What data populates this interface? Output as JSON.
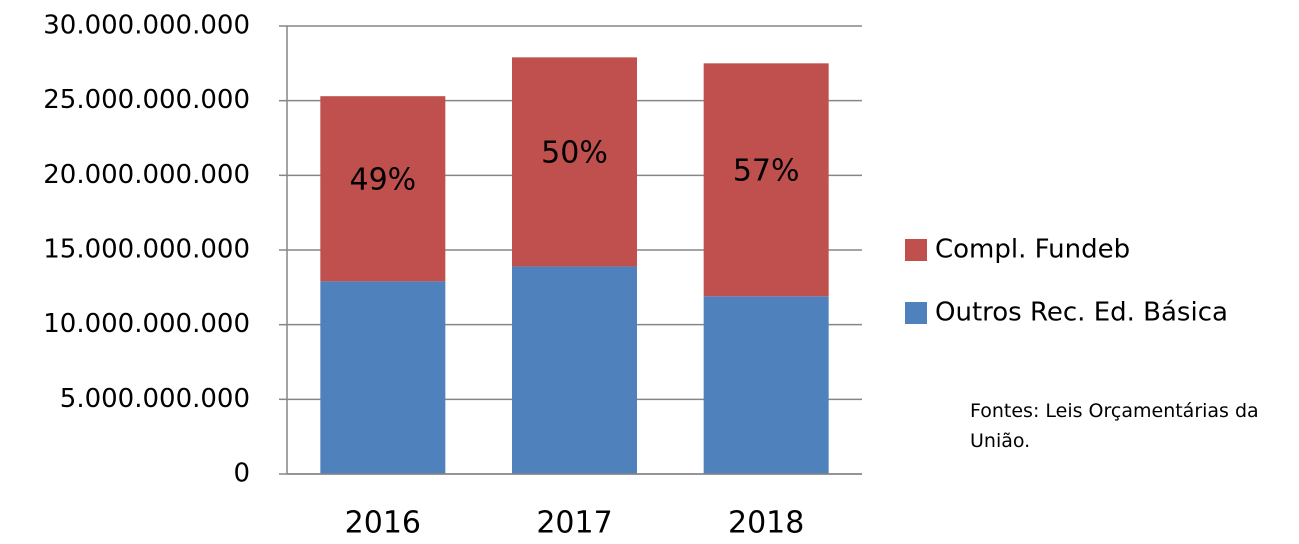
{
  "chart_data": {
    "type": "stacked_bar",
    "categories": [
      "2016",
      "2017",
      "2018"
    ],
    "series": [
      {
        "name": "Outros Rec. Ed. Básica",
        "color": "#4f81bd",
        "values": [
          12900000000,
          13900000000,
          11900000000
        ]
      },
      {
        "name": "Compl. Fundeb",
        "color": "#c0504d",
        "values": [
          12400000000,
          14000000000,
          15600000000
        ]
      }
    ],
    "annotations": [
      "49%",
      "50%",
      "57%"
    ],
    "ylim": [
      0,
      30000000000
    ],
    "yticks": [
      0,
      {
        "value": 5000000000,
        "label": "5.000.000.000"
      },
      {
        "value": 10000000000,
        "label": "10.000.000.000"
      },
      {
        "value": 15000000000,
        "label": "15.000.000.000"
      },
      {
        "value": 20000000000,
        "label": "20.000.000.000"
      },
      {
        "value": 25000000000,
        "label": "25.000.000.000"
      },
      {
        "value": 30000000000,
        "label": "30.000.000.000"
      }
    ],
    "grid": true,
    "legend": "right",
    "note": "Fontes: Leis Orçamentárias da União."
  }
}
